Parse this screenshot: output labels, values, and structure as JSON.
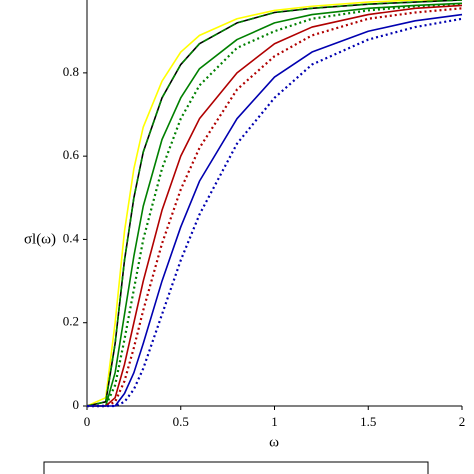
{
  "chart_data": {
    "type": "line",
    "xlabel": "ω",
    "ylabel": "σl(ω)",
    "x": [
      0,
      0.1,
      0.15,
      0.2,
      0.25,
      0.3,
      0.4,
      0.5,
      0.6,
      0.8,
      1.0,
      1.2,
      1.5,
      1.75,
      2.0
    ],
    "series": [
      {
        "color": "#ffff00",
        "style": "solid",
        "values": [
          0,
          0.02,
          0.2,
          0.42,
          0.57,
          0.67,
          0.78,
          0.85,
          0.89,
          0.93,
          0.95,
          0.96,
          0.97,
          0.975,
          0.975
        ]
      },
      {
        "color": "#000000",
        "style": "solid",
        "values": [
          0,
          0.01,
          0.15,
          0.35,
          0.5,
          0.61,
          0.74,
          0.82,
          0.87,
          0.92,
          0.945,
          0.955,
          0.965,
          0.97,
          0.975
        ]
      },
      {
        "color": "#008000",
        "style": "dashed",
        "values": [
          0,
          0.01,
          0.15,
          0.35,
          0.5,
          0.61,
          0.74,
          0.82,
          0.87,
          0.92,
          0.945,
          0.955,
          0.965,
          0.97,
          0.975
        ]
      },
      {
        "color": "#008000",
        "style": "solid",
        "values": [
          0,
          0,
          0.08,
          0.22,
          0.36,
          0.48,
          0.64,
          0.74,
          0.81,
          0.88,
          0.92,
          0.94,
          0.955,
          0.962,
          0.967
        ]
      },
      {
        "color": "#008000",
        "style": "dotted",
        "values": [
          0,
          0,
          0.05,
          0.16,
          0.28,
          0.4,
          0.57,
          0.69,
          0.77,
          0.86,
          0.9,
          0.93,
          0.95,
          0.96,
          0.965
        ]
      },
      {
        "color": "#b00000",
        "style": "solid",
        "values": [
          0,
          0,
          0.02,
          0.1,
          0.2,
          0.3,
          0.47,
          0.6,
          0.69,
          0.8,
          0.87,
          0.91,
          0.94,
          0.955,
          0.962
        ]
      },
      {
        "color": "#b00000",
        "style": "dotted",
        "values": [
          0,
          0,
          0.01,
          0.06,
          0.14,
          0.23,
          0.39,
          0.52,
          0.62,
          0.76,
          0.84,
          0.89,
          0.93,
          0.945,
          0.955
        ]
      },
      {
        "color": "#0000b0",
        "style": "solid",
        "values": [
          0,
          0,
          0,
          0.03,
          0.08,
          0.15,
          0.3,
          0.43,
          0.54,
          0.69,
          0.79,
          0.85,
          0.9,
          0.925,
          0.94
        ]
      },
      {
        "color": "#0000b0",
        "style": "dotted",
        "values": [
          0,
          0,
          0,
          0.01,
          0.04,
          0.09,
          0.22,
          0.35,
          0.46,
          0.63,
          0.74,
          0.82,
          0.88,
          0.91,
          0.93
        ]
      }
    ],
    "xlim": [
      0,
      2
    ],
    "ylim": [
      0,
      0.975
    ],
    "xticks": [
      0,
      0.5,
      1,
      1.5,
      2
    ],
    "yticks": [
      0,
      0.2,
      0.4,
      0.6,
      0.8
    ]
  }
}
